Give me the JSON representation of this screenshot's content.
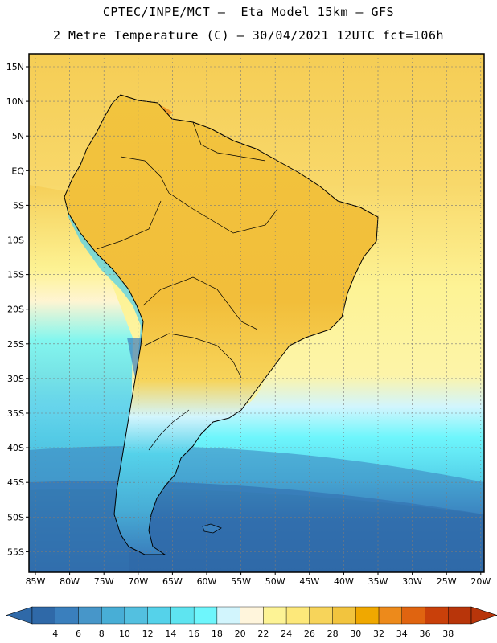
{
  "header": {
    "line1": "CPTEC/INPE/MCT –  Eta Model 15km – GFS",
    "line2": "2 Metre Temperature (C) – 30/04/2021 12UTC fct=106h"
  },
  "map": {
    "region": "South America",
    "lat_labels": [
      "15N",
      "10N",
      "5N",
      "EQ",
      "5S",
      "10S",
      "15S",
      "20S",
      "25S",
      "30S",
      "35S",
      "40S",
      "45S",
      "50S",
      "55S"
    ],
    "lon_labels": [
      "85W",
      "80W",
      "75W",
      "70W",
      "65W",
      "60W",
      "55W",
      "50W",
      "45W",
      "40W",
      "35W",
      "30W",
      "25W",
      "20W"
    ]
  },
  "colorbar": {
    "ticks": [
      "4",
      "6",
      "8",
      "10",
      "12",
      "14",
      "16",
      "18",
      "20",
      "22",
      "24",
      "26",
      "28",
      "30",
      "32",
      "34",
      "36",
      "38"
    ],
    "colors": [
      "#2f69a8",
      "#3a7fbd",
      "#4796c9",
      "#48aed6",
      "#53c0e0",
      "#55d2ea",
      "#5ee4f0",
      "#6ef6fc",
      "#d2f5fd",
      "#fff5dc",
      "#fdf395",
      "#fde87a",
      "#f7d45a",
      "#f2c43e",
      "#f0a800",
      "#ed8a1b",
      "#e06410",
      "#c9400a",
      "#b8350a"
    ],
    "under_color": "#2f69a8",
    "over_color": "#b8350a"
  }
}
